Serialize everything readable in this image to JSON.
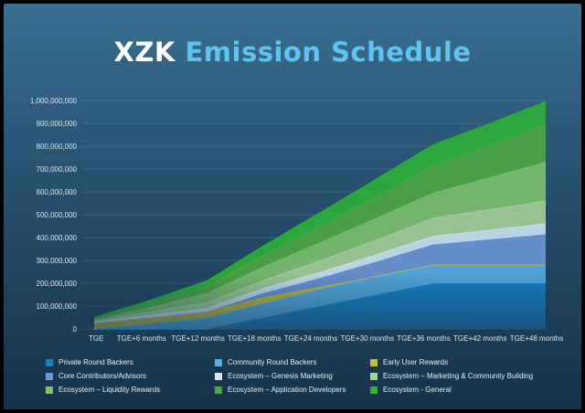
{
  "title_part1": "XZK",
  "title_part2": "Emission Schedule",
  "colors": {
    "title_accent": "#5ec3ef",
    "background_top": "#3a6f90",
    "background_bottom": "#163349"
  },
  "chart_data": {
    "type": "area",
    "stacked": true,
    "title": "XZK Emission Schedule",
    "categories": [
      "TGE",
      "TGE+6 months",
      "TGE+12 months",
      "TGE+18 months",
      "TGE+24 months",
      "TGE+30 months",
      "TGE+36 months",
      "TGE+42 months",
      "TGE+48 months"
    ],
    "y_ticks": [
      "0",
      "100,000,000",
      "200,000,000",
      "300,000,000",
      "400,000,000",
      "500,000,000",
      "600,000,000",
      "700,000,000",
      "800,000,000",
      "900,000,000",
      "1,000,000,000"
    ],
    "ylim": [
      0,
      1000000000
    ],
    "grid": true,
    "legend_position": "bottom",
    "series": [
      {
        "name": "Private Round Backers",
        "color": "#1582c8",
        "values": [
          0,
          0,
          0,
          50000000,
          100000000,
          150000000,
          200000000,
          200000000,
          200000000
        ]
      },
      {
        "name": "Community Round Backers",
        "color": "#56aee6",
        "values": [
          0,
          25000000,
          50000000,
          62500000,
          75000000,
          80000000,
          80000000,
          80000000,
          80000000
        ]
      },
      {
        "name": "Early User Rewards",
        "color": "#c9bd2e",
        "values": [
          25000000,
          25000000,
          25000000,
          25000000,
          8000000,
          0,
          0,
          0,
          0
        ]
      },
      {
        "name": "Core Contributors/Advisors",
        "color": "#6d97d8",
        "values": [
          0,
          0,
          0,
          20000000,
          40000000,
          65000000,
          90000000,
          112500000,
          135000000
        ]
      },
      {
        "name": "Ecosystem – Genesis Marketing",
        "color": "#cfe6f6",
        "values": [
          5000000,
          10000000,
          15000000,
          20000000,
          25000000,
          30000000,
          35000000,
          40000000,
          45000000
        ]
      },
      {
        "name": "Ecosystem – Marketing & Community Building",
        "color": "#a9d39a",
        "values": [
          5000000,
          15000000,
          25000000,
          35000000,
          50000000,
          65000000,
          80000000,
          90000000,
          100000000
        ]
      },
      {
        "name": "Ecosystem – Liquidity Rewards",
        "color": "#7fc36f",
        "values": [
          5000000,
          20000000,
          40000000,
          60000000,
          80000000,
          95000000,
          110000000,
          140000000,
          170000000
        ]
      },
      {
        "name": "Ecosystem – Application Developers",
        "color": "#4ea943",
        "values": [
          5000000,
          15000000,
          30000000,
          50000000,
          70000000,
          95000000,
          120000000,
          140000000,
          165000000
        ]
      },
      {
        "name": "Ecosystem - General",
        "color": "#2cb336",
        "values": [
          5000000,
          15000000,
          25000000,
          40000000,
          60000000,
          75000000,
          90000000,
          95000000,
          100000000
        ]
      }
    ]
  }
}
